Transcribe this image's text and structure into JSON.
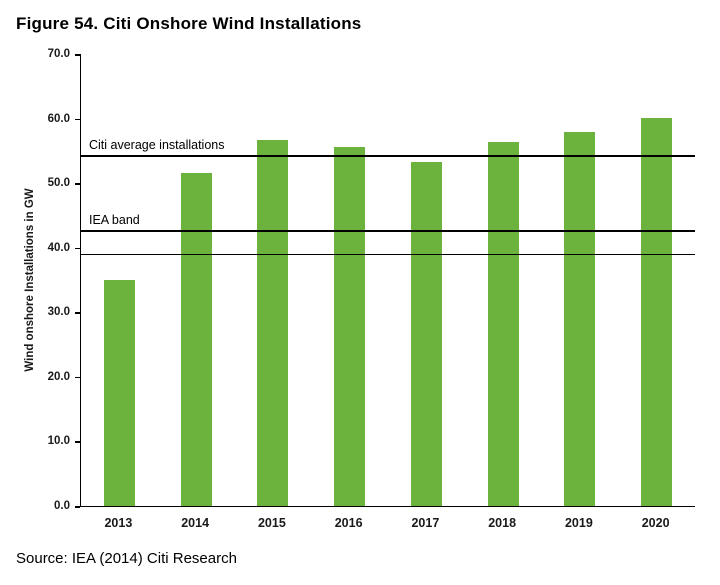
{
  "figure": {
    "title": "Figure 54. Citi Onshore Wind Installations",
    "source": "Source: IEA (2014) Citi Research"
  },
  "chart_data": {
    "type": "bar",
    "title": "Figure 54. Citi Onshore Wind Installations",
    "categories": [
      "2013",
      "2014",
      "2015",
      "2016",
      "2017",
      "2018",
      "2019",
      "2020"
    ],
    "values": [
      35.0,
      51.5,
      56.7,
      55.6,
      53.3,
      56.3,
      58.0,
      60.1
    ],
    "xlabel": "",
    "ylabel": "Wind onshore Installations in GW",
    "ylim": [
      0,
      70
    ],
    "yticks": [
      0,
      10,
      20,
      30,
      40,
      50,
      60,
      70
    ],
    "ytick_labels": [
      "0.0",
      "10.0",
      "20.0",
      "30.0",
      "40.0",
      "50.0",
      "60.0",
      "70.0"
    ],
    "grid": false,
    "legend": "none",
    "bar_color": "#6CB33E",
    "axis_color": "#000000",
    "reference_lines": [
      {
        "label": "Citi average installations",
        "value": 54.1
      },
      {
        "label": "IEA band",
        "value": 42.5
      },
      {
        "label": "",
        "value": 38.8
      }
    ],
    "source": "Source: IEA (2014) Citi Research"
  }
}
